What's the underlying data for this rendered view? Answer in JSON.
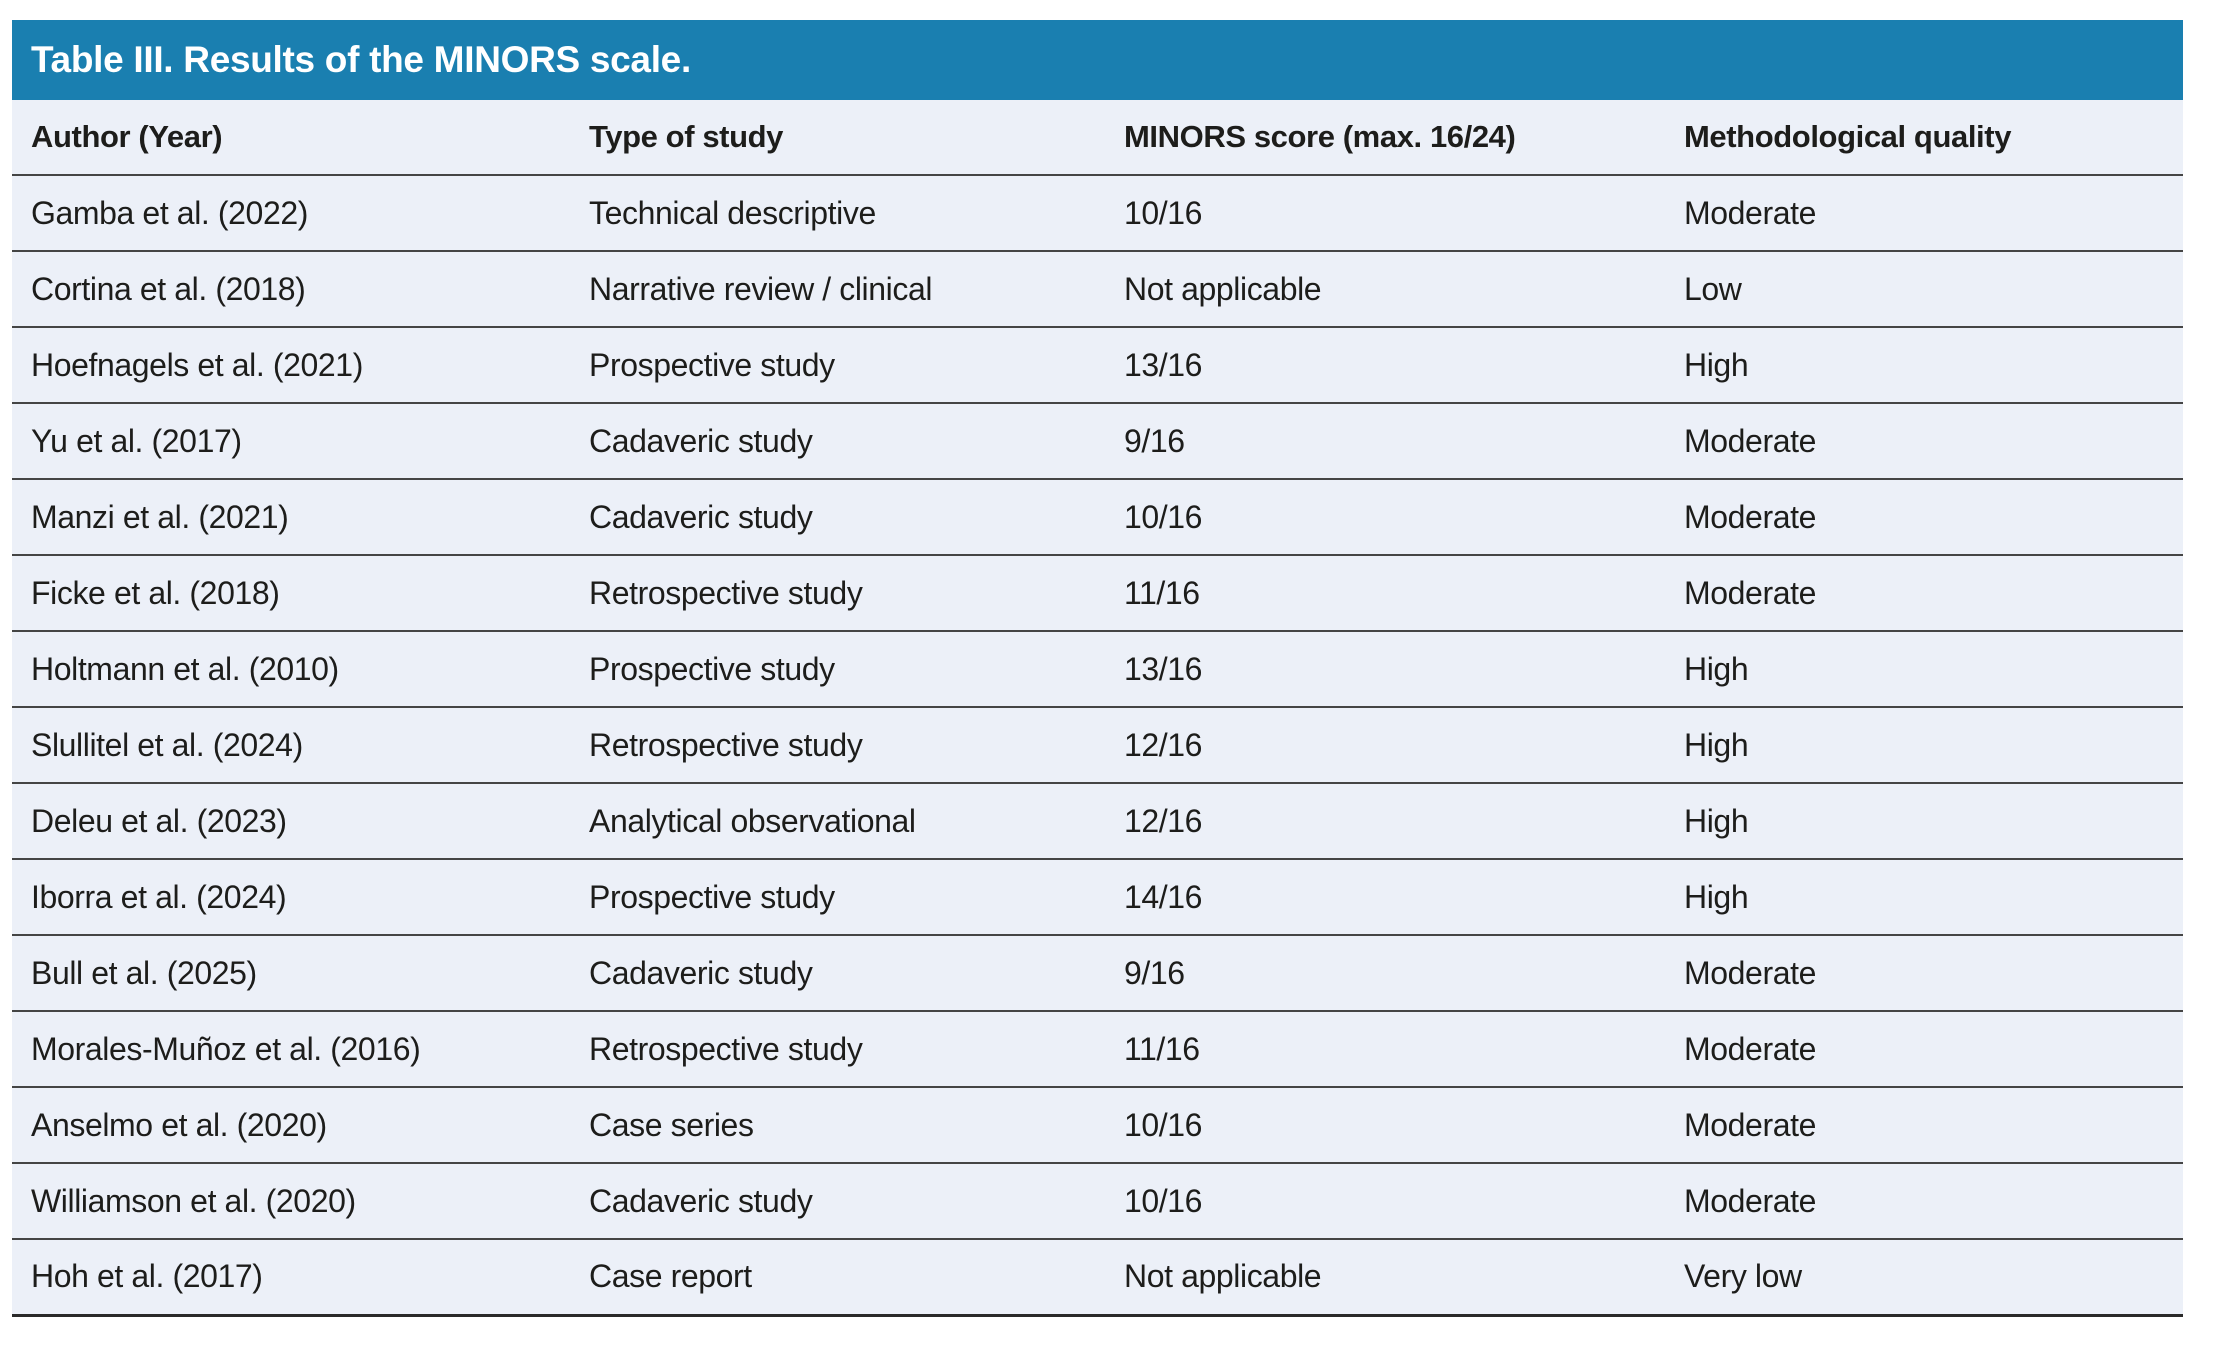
{
  "title": "Table III. Results of the MINORS scale.",
  "colors": {
    "header_bar": "#1a7fb0",
    "row_bg": "#ecf0f8",
    "rule": "#454545",
    "text": "#1d1d1b",
    "title_text": "#ffffff"
  },
  "table": {
    "columns": [
      "Author (Year)",
      "Type of study",
      "MINORS score (max. 16/24)",
      "Methodological quality"
    ],
    "rows": [
      [
        "Gamba et al. (2022)",
        "Technical descriptive",
        "10/16",
        "Moderate"
      ],
      [
        "Cortina et al. (2018)",
        "Narrative review / clinical",
        "Not applicable",
        "Low"
      ],
      [
        "Hoefnagels et al. (2021)",
        "Prospective study",
        "13/16",
        "High"
      ],
      [
        "Yu et al. (2017)",
        "Cadaveric study",
        "9/16",
        "Moderate"
      ],
      [
        "Manzi et al. (2021)",
        "Cadaveric study",
        "10/16",
        "Moderate"
      ],
      [
        "Ficke et al. (2018)",
        "Retrospective study",
        "11/16",
        "Moderate"
      ],
      [
        "Holtmann et al. (2010)",
        "Prospective study",
        "13/16",
        "High"
      ],
      [
        "Slullitel et al. (2024)",
        "Retrospective study",
        "12/16",
        "High"
      ],
      [
        "Deleu et al. (2023)",
        "Analytical observational",
        "12/16",
        "High"
      ],
      [
        "Iborra et al. (2024)",
        "Prospective study",
        "14/16",
        "High"
      ],
      [
        "Bull et al. (2025)",
        "Cadaveric study",
        "9/16",
        "Moderate"
      ],
      [
        "Morales-Muñoz et al. (2016)",
        "Retrospective study",
        "11/16",
        "Moderate"
      ],
      [
        "Anselmo et al. (2020)",
        "Case series",
        "10/16",
        "Moderate"
      ],
      [
        "Williamson et al. (2020)",
        "Cadaveric study",
        "10/16",
        "Moderate"
      ],
      [
        "Hoh et al. (2017)",
        "Case report",
        "Not applicable",
        "Very low"
      ]
    ]
  }
}
